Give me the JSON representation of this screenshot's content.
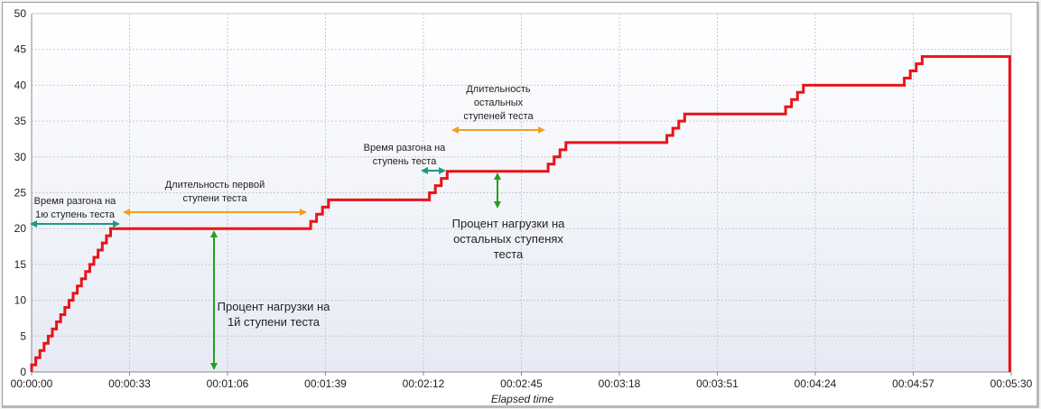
{
  "chart_data": {
    "type": "line",
    "title": "",
    "xlabel": "Elapsed time",
    "ylabel": "",
    "xlim": [
      0,
      330
    ],
    "ylim": [
      0,
      50
    ],
    "grid": true,
    "x_tick_labels": [
      "00:00:00",
      "00:00:33",
      "00:01:06",
      "00:01:39",
      "00:02:12",
      "00:02:45",
      "00:03:18",
      "00:03:51",
      "00:04:24",
      "00:04:57",
      "00:05:30"
    ],
    "y_tick_labels": [
      "0",
      "5",
      "10",
      "15",
      "20",
      "25",
      "30",
      "35",
      "40",
      "45",
      "50"
    ],
    "series": [
      {
        "color": "#e8141a",
        "x": [
          0,
          28,
          28.01,
          92,
          94,
          96,
          98,
          100,
          100.01,
          132,
          134,
          136,
          138,
          140,
          140.01,
          172,
          174,
          176,
          178,
          180,
          180.01,
          212,
          214,
          216,
          218,
          220,
          220.01,
          252,
          254,
          256,
          258,
          260,
          260.01,
          292,
          294,
          296,
          298,
          300,
          300.01,
          329.5,
          329.5
        ],
        "y": [
          0,
          20,
          20,
          20,
          21,
          22,
          23,
          24,
          24,
          24,
          25,
          26,
          27,
          28,
          28,
          28,
          29,
          30,
          31,
          32,
          32,
          32,
          33,
          34,
          35,
          36,
          36,
          36,
          37,
          38,
          39,
          40,
          40,
          40,
          41,
          42,
          43,
          44,
          44,
          44,
          0
        ]
      }
    ],
    "annotations": {
      "ramp1": {
        "lines": [
          "Время разгона на",
          "1ю ступень теста"
        ]
      },
      "dur1": {
        "lines": [
          "Длительность первой",
          "ступени теста"
        ]
      },
      "load1": {
        "lines": [
          "Процент нагрузки на",
          "1й ступени теста"
        ]
      },
      "ramp2": {
        "lines": [
          "Время разгона на",
          "ступень теста"
        ]
      },
      "dur2": {
        "lines": [
          "Длительность",
          "остальных",
          "ступеней теста"
        ]
      },
      "load2": {
        "lines": [
          "Процент нагрузки на",
          "остальных ступенях",
          "теста"
        ]
      }
    },
    "colors": {
      "line": "#e8141a",
      "teal": "#1a9a86",
      "orange": "#f0a020",
      "green": "#22a022"
    }
  }
}
